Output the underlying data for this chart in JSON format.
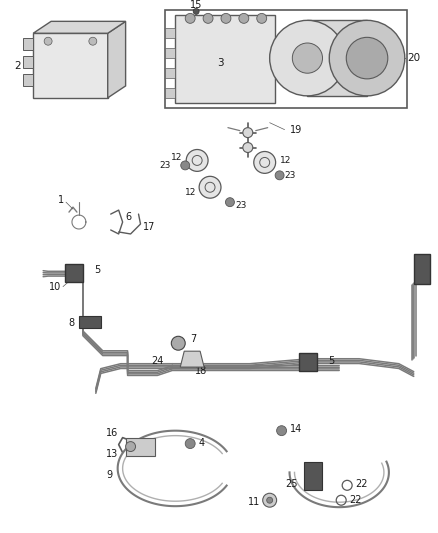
{
  "bg_color": "#ffffff",
  "fig_width": 4.38,
  "fig_height": 5.33,
  "dpi": 100,
  "line_color": "#5a5a5a",
  "tube_color": "#7a7a7a",
  "label_color": "#1a1a1a"
}
